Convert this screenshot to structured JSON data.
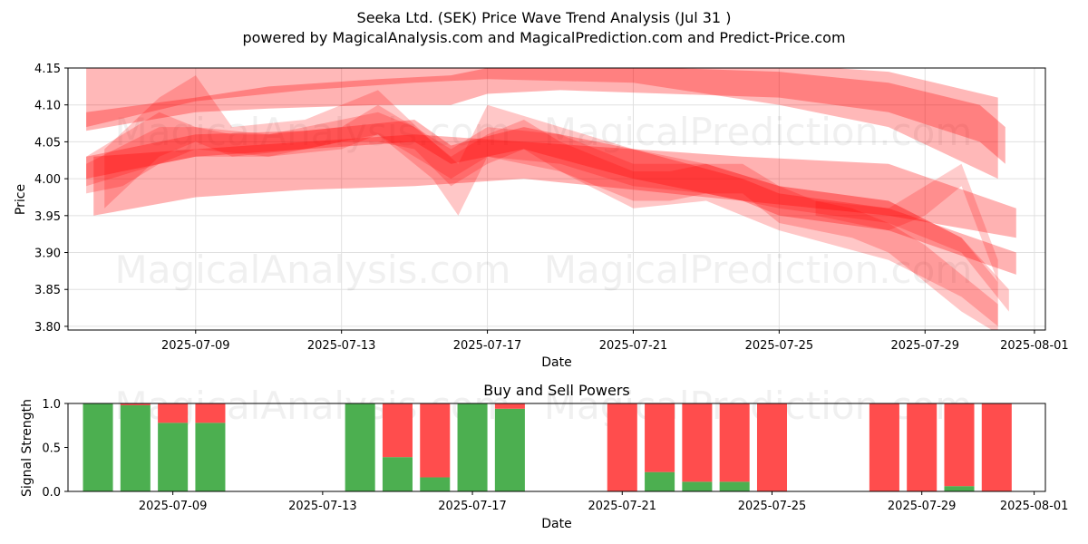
{
  "title_line1": "Seeka Ltd. (SEK) Price Wave Trend Analysis (Jul 31 )",
  "title_line2": "powered by MagicalAnalysis.com and MagicalPrediction.com and Predict-Price.com",
  "watermarks": [
    "MagicalAnalysis.com",
    "MagicalPrediction.com"
  ],
  "colors": {
    "band": "#ff0000",
    "buy": "#4caf50",
    "sell": "#ff4d4d",
    "grid": "#e0e0e0"
  },
  "chart_data": [
    {
      "type": "area",
      "title": "",
      "xlabel": "Date",
      "ylabel": "Price",
      "ylim": [
        3.795,
        4.15
      ],
      "xlim": [
        "2025-07-05.5",
        "2025-08-01.3"
      ],
      "grid": true,
      "x_ticks": [
        "2025-07-09",
        "2025-07-13",
        "2025-07-17",
        "2025-07-21",
        "2025-07-25",
        "2025-07-29",
        "2025-08-01"
      ],
      "y_ticks": [
        "3.80",
        "3.85",
        "3.90",
        "3.95",
        "4.00",
        "4.05",
        "4.10",
        "4.15"
      ],
      "bands": [
        {
          "name": "wave-upper",
          "opacity": 0.28,
          "x": [
            6.0,
            9.0,
            12.0,
            15.0,
            17.0,
            21.0,
            25.0,
            28.0,
            31.0
          ],
          "low": [
            4.07,
            4.105,
            4.12,
            4.13,
            4.135,
            4.13,
            4.1,
            4.07,
            4.0
          ],
          "high": [
            4.15,
            4.16,
            4.16,
            4.16,
            4.16,
            4.16,
            4.155,
            4.145,
            4.11
          ]
        },
        {
          "name": "wave-long",
          "opacity": 0.3,
          "x": [
            6.0,
            9.0,
            11.0,
            14.0,
            16.0,
            17.0,
            19.0,
            22.0,
            25.0,
            28.0,
            30.5,
            31.2
          ],
          "low": [
            4.065,
            4.09,
            4.095,
            4.1,
            4.1,
            4.115,
            4.12,
            4.115,
            4.11,
            4.09,
            4.05,
            4.02
          ],
          "high": [
            4.09,
            4.11,
            4.125,
            4.135,
            4.14,
            4.15,
            4.155,
            4.15,
            4.145,
            4.13,
            4.1,
            4.07
          ]
        },
        {
          "name": "wave-mid-a",
          "opacity": 0.3,
          "x": [
            6.0,
            9.0,
            12.0,
            15.0,
            16.0,
            18.0,
            21.0,
            24.0,
            25.0,
            28.0,
            31.5
          ],
          "low": [
            4.0,
            4.03,
            4.04,
            4.05,
            4.02,
            4.04,
            4.0,
            3.97,
            3.95,
            3.93,
            3.87
          ],
          "high": [
            4.03,
            4.06,
            4.065,
            4.08,
            4.045,
            4.07,
            4.04,
            4.0,
            3.98,
            3.96,
            3.9
          ]
        },
        {
          "name": "wave-mid-b",
          "opacity": 0.22,
          "x": [
            6.0,
            8.0,
            9.0,
            11.0,
            13.0,
            14.0,
            16.0,
            17.0,
            19.0,
            21.0,
            23.0,
            25.0,
            28.0,
            30.0,
            31.3
          ],
          "low": [
            3.99,
            4.02,
            4.04,
            4.03,
            4.04,
            4.06,
            4.0,
            4.03,
            4.02,
            3.99,
            3.98,
            3.96,
            3.94,
            3.9,
            3.82
          ],
          "high": [
            4.02,
            4.07,
            4.07,
            4.06,
            4.07,
            4.1,
            4.04,
            4.07,
            4.06,
            4.02,
            4.02,
            3.99,
            3.97,
            3.92,
            3.85
          ]
        },
        {
          "name": "wave-lower",
          "opacity": 0.3,
          "x": [
            6.2,
            9.0,
            12.0,
            15.0,
            18.0,
            21.0,
            24.0,
            28.0,
            31.5
          ],
          "low": [
            3.95,
            3.975,
            3.985,
            3.99,
            4.0,
            3.985,
            3.97,
            3.95,
            3.92
          ],
          "high": [
            4.03,
            4.04,
            4.05,
            4.06,
            4.05,
            4.04,
            4.03,
            4.02,
            3.96
          ]
        },
        {
          "name": "wave-short",
          "opacity": 0.22,
          "x": [
            6.0,
            7.0,
            8.0,
            9.0,
            10.0,
            11.0,
            12.0,
            13.0,
            14.0,
            15.0,
            16.0,
            17.0,
            18.0,
            19.0,
            20.0,
            21.0,
            22.0,
            23.0,
            24.0,
            25.0,
            26.0,
            27.0,
            28.0,
            29.0,
            30.0,
            31.0
          ],
          "low": [
            3.98,
            3.99,
            4.02,
            4.03,
            4.03,
            4.03,
            4.04,
            4.05,
            4.05,
            4.04,
            3.99,
            4.02,
            4.04,
            4.01,
            3.99,
            3.97,
            3.97,
            3.98,
            3.98,
            3.94,
            3.93,
            3.92,
            3.9,
            3.86,
            3.82,
            3.79
          ],
          "high": [
            4.03,
            4.06,
            4.09,
            4.07,
            4.06,
            4.06,
            4.07,
            4.08,
            4.09,
            4.07,
            4.03,
            4.06,
            4.08,
            4.05,
            4.03,
            4.01,
            4.01,
            4.02,
            4.02,
            3.99,
            3.97,
            3.96,
            3.94,
            3.91,
            3.87,
            3.83
          ]
        },
        {
          "name": "wave-spike",
          "opacity": 0.22,
          "x": [
            6.5,
            8.0,
            9.0,
            10.0,
            12.0,
            14.0,
            15.5,
            16.2,
            17.0,
            19.0,
            21.0,
            23.0,
            25.0,
            28.0,
            30.0,
            31.0
          ],
          "low": [
            3.96,
            4.03,
            4.05,
            4.03,
            4.04,
            4.06,
            4.0,
            3.95,
            4.03,
            4.01,
            3.96,
            3.97,
            3.93,
            3.89,
            3.84,
            3.8
          ],
          "high": [
            4.04,
            4.11,
            4.14,
            4.07,
            4.08,
            4.12,
            4.05,
            4.02,
            4.1,
            4.07,
            4.04,
            4.02,
            3.99,
            3.97,
            3.92,
            3.86
          ]
        },
        {
          "name": "wave-tail",
          "opacity": 0.2,
          "x": [
            26.0,
            28.0,
            29.0,
            30.0,
            31.0
          ],
          "low": [
            3.95,
            3.93,
            3.95,
            3.99,
            3.86
          ],
          "high": [
            3.97,
            3.96,
            3.99,
            4.02,
            3.89
          ]
        }
      ]
    },
    {
      "type": "bar",
      "title": "Buy and Sell Powers",
      "xlabel": "Date",
      "ylabel": "Signal Strength",
      "ylim": [
        0,
        1.0
      ],
      "y_ticks": [
        "0.0",
        "0.5",
        "1.0"
      ],
      "x_ticks": [
        "2025-07-09",
        "2025-07-13",
        "2025-07-17",
        "2025-07-21",
        "2025-07-25",
        "2025-07-29",
        "2025-08-01"
      ],
      "series": [
        {
          "name": "Buy",
          "color": "#4caf50"
        },
        {
          "name": "Sell",
          "color": "#ff4d4d"
        }
      ],
      "bars": [
        {
          "date": "2025-07-07",
          "buy": 1.0,
          "sell": 0.0
        },
        {
          "date": "2025-07-08",
          "buy": 0.98,
          "sell": 0.02
        },
        {
          "date": "2025-07-09",
          "buy": 0.78,
          "sell": 0.22
        },
        {
          "date": "2025-07-10",
          "buy": 0.78,
          "sell": 0.22
        },
        {
          "date": "2025-07-14",
          "buy": 1.0,
          "sell": 0.0
        },
        {
          "date": "2025-07-15",
          "buy": 0.39,
          "sell": 0.61
        },
        {
          "date": "2025-07-16",
          "buy": 0.16,
          "sell": 0.84
        },
        {
          "date": "2025-07-17",
          "buy": 1.0,
          "sell": 0.0
        },
        {
          "date": "2025-07-18",
          "buy": 0.94,
          "sell": 0.06
        },
        {
          "date": "2025-07-21",
          "buy": 0.0,
          "sell": 1.0
        },
        {
          "date": "2025-07-22",
          "buy": 0.22,
          "sell": 0.78
        },
        {
          "date": "2025-07-23",
          "buy": 0.11,
          "sell": 0.89
        },
        {
          "date": "2025-07-24",
          "buy": 0.11,
          "sell": 0.89
        },
        {
          "date": "2025-07-25",
          "buy": 0.0,
          "sell": 1.0
        },
        {
          "date": "2025-07-28",
          "buy": 0.0,
          "sell": 1.0
        },
        {
          "date": "2025-07-29",
          "buy": 0.0,
          "sell": 1.0
        },
        {
          "date": "2025-07-30",
          "buy": 0.06,
          "sell": 0.94
        },
        {
          "date": "2025-07-31",
          "buy": 0.0,
          "sell": 1.0
        }
      ]
    }
  ]
}
